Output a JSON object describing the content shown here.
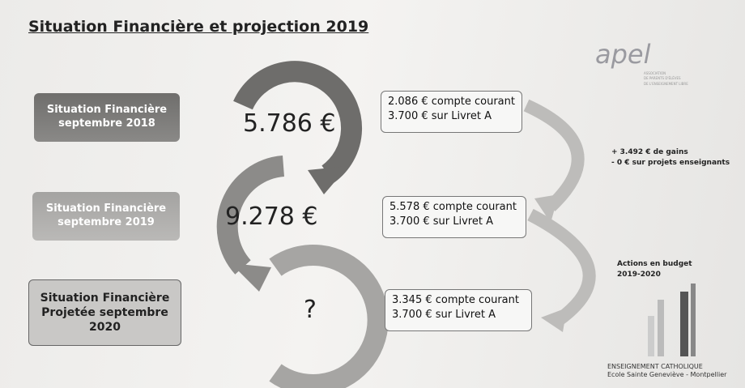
{
  "title": "Situation Financière et projection 2019",
  "logo": {
    "name": "apel",
    "lines": [
      "ASSOCIATION",
      "DE PARENTS D'ÉLÈVES",
      "DE L'ENSEIGNEMENT LIBRE"
    ]
  },
  "rows": [
    {
      "label": [
        "Situation Financière",
        "septembre 2018"
      ],
      "amount": "5.786 €",
      "details": [
        "2.086 € compte courant",
        "3.700 € sur Livret A"
      ]
    },
    {
      "label": [
        "Situation Financière",
        "septembre 2019"
      ],
      "amount": "9.278 €",
      "details": [
        "5.578 € compte courant",
        "3.700 € sur Livret A"
      ]
    },
    {
      "label": [
        "Situation Financière",
        "Projetée septembre",
        "2020"
      ],
      "amount": "?",
      "details": [
        "3.345 € compte courant",
        "3.700 € sur Livret A"
      ]
    }
  ],
  "notes": {
    "gains": [
      "+ 3.492 € de gains",
      "- 0 € sur projets enseignants"
    ],
    "budget": [
      "Actions en budget",
      "2019-2020"
    ]
  },
  "footer": [
    "ENSEIGNEMENT CATHOLIQUE",
    "Ecole Sainte Geneviève - Montpellier"
  ]
}
